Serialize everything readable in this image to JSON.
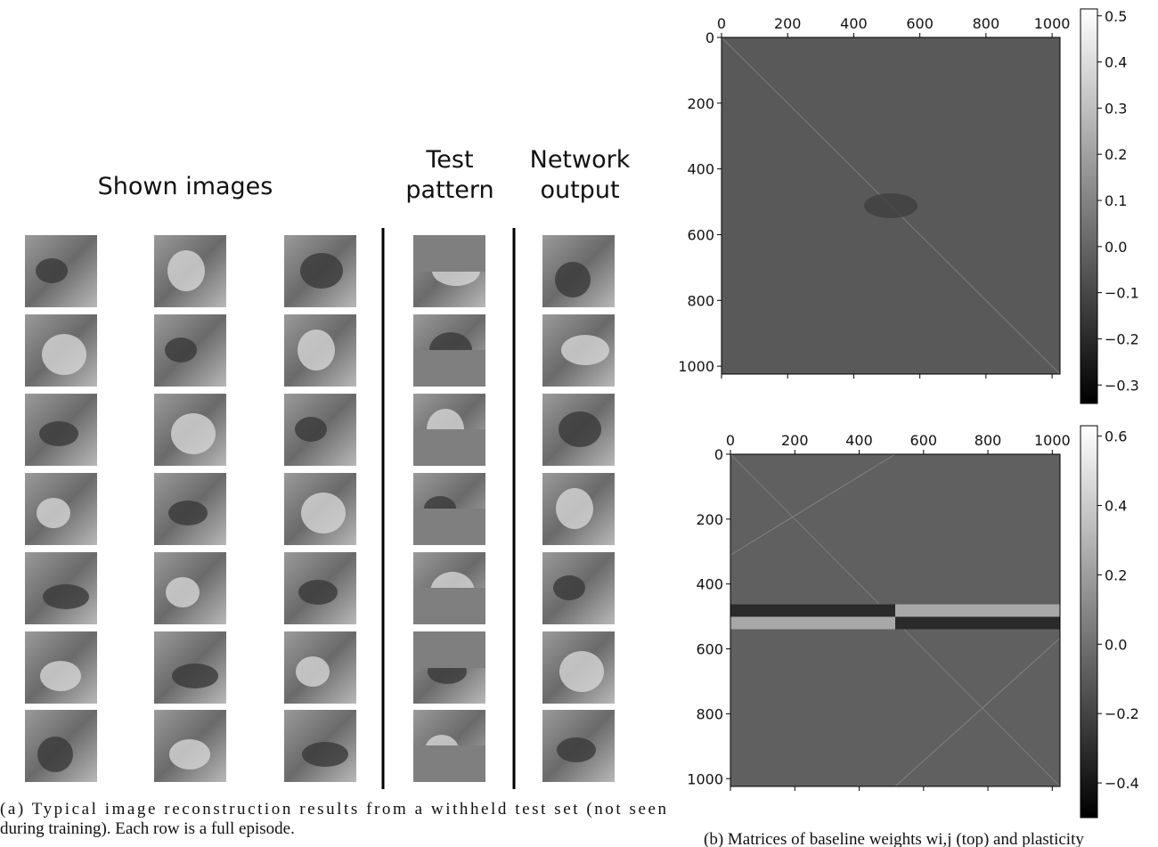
{
  "figure_a": {
    "headers": {
      "shown": "Shown images",
      "test_1": "Test",
      "test_2": "pattern",
      "output_1": "Network",
      "output_2": "output"
    },
    "caption_1": "(a) Typical image reconstruction results from a withheld test set (not seen",
    "caption_2": "during training). Each row is a full episode."
  },
  "heatmaps": [
    {
      "xlim": [
        0,
        1024
      ],
      "xticks": [
        0,
        200,
        400,
        600,
        800,
        1000
      ],
      "ylim": [
        0,
        1024
      ],
      "yticks": [
        0,
        200,
        400,
        600,
        800,
        1000
      ],
      "clim": [
        -0.34,
        0.515
      ],
      "cticks": [
        {
          "value": -0.3,
          "label": "−0.3"
        },
        {
          "value": -0.2,
          "label": "−0.2"
        },
        {
          "value": -0.1,
          "label": "−0.1"
        },
        {
          "value": 0,
          "label": "0.0"
        },
        0.1,
        0.2,
        0.3,
        0.4,
        0.5
      ]
    },
    {
      "xlim": [
        0,
        1024
      ],
      "xticks": [
        0,
        200,
        400,
        600,
        800,
        1000
      ],
      "ylim": [
        0,
        1024
      ],
      "yticks": [
        0,
        200,
        400,
        600,
        800,
        1000
      ],
      "clim": [
        -0.5,
        0.63
      ],
      "cticks": [
        {
          "value": -0.4,
          "label": "−0.4"
        },
        {
          "value": -0.2,
          "label": "−0.2"
        },
        {
          "value": 0,
          "label": "0.0"
        },
        0.2,
        0.4,
        0.6
      ]
    }
  ],
  "caption_b": "(b) Matrices of baseline weights wi,j (top) and plasticity"
}
